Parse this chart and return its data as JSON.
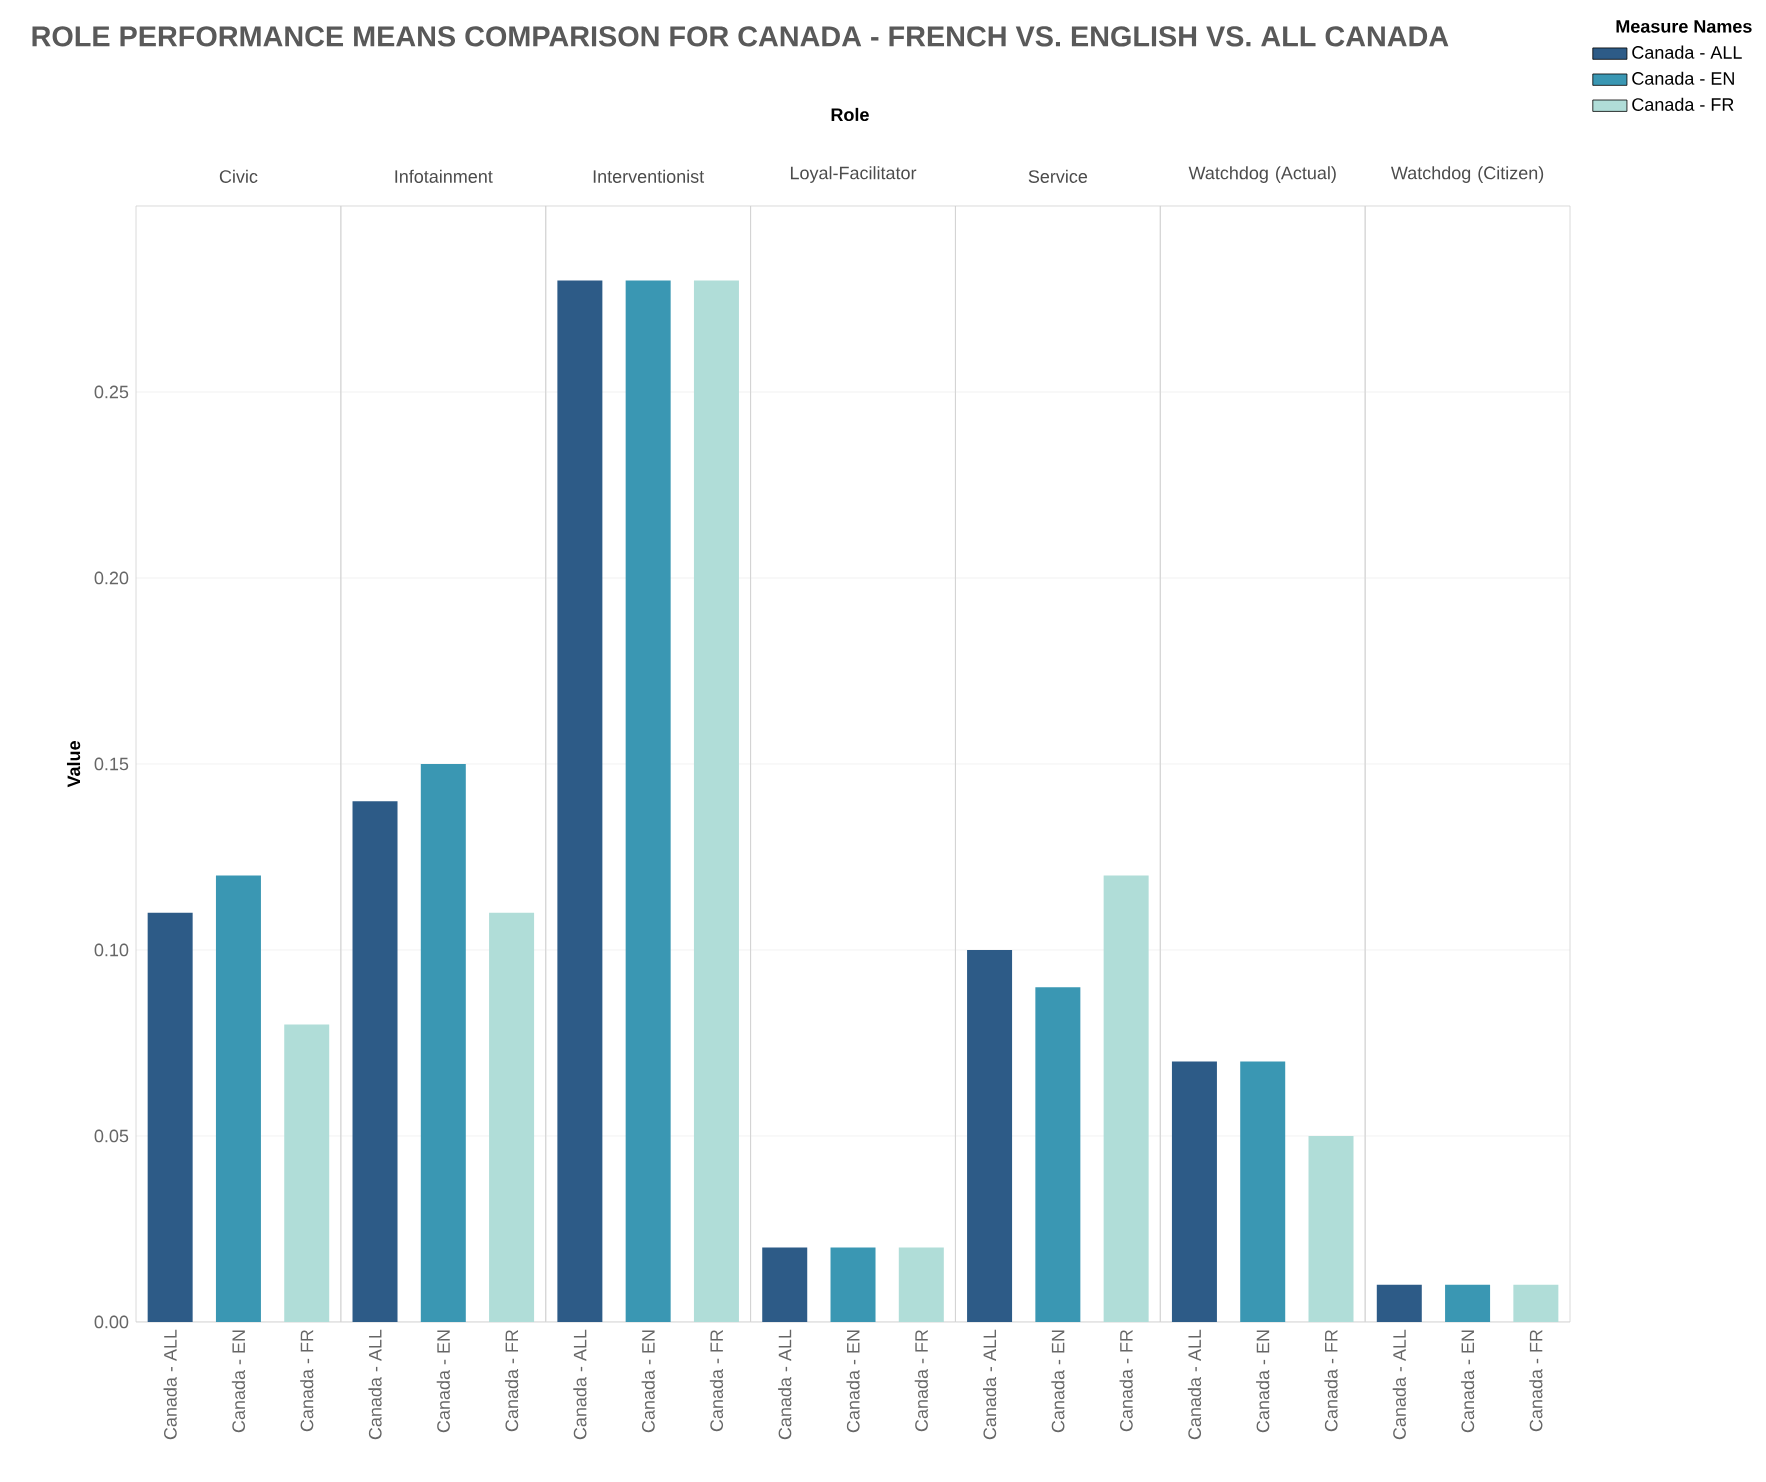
{
  "chart_data": [
    {
      "type": "bar",
      "title": "Civic",
      "ylabel": "Value",
      "legend": "top right",
      "legend_title": "Measure Names",
      "grid": "y",
      "annotations": [
        "ROLE PERFORMANCE MEANS COMPARISON FOR CANADA - FRENCH VS. ENGLISH VS. ALL CANADA",
        "Role"
      ],
      "categories": [
        "Canada - ALL",
        "Canada - EN",
        "Canada - FR"
      ],
      "ylim": [
        0,
        0.3
      ],
      "yticks": [
        {
          "value": 0,
          "label": "0.00"
        },
        {
          "value": 0.05,
          "label": "0.05"
        },
        {
          "value": 0.1,
          "label": "0.10"
        },
        {
          "value": 0.15,
          "label": "0.15"
        },
        {
          "value": 0.2,
          "label": "0.20"
        },
        {
          "value": 0.25,
          "label": "0.25"
        }
      ],
      "series": [
        {
          "name": "Canada - ALL",
          "color": "#2d5b87",
          "values": [
            0.11,
            null,
            null
          ]
        },
        {
          "name": "Canada - EN",
          "color": "#3a97b3",
          "values": [
            null,
            0.12,
            null
          ]
        },
        {
          "name": "Canada - FR",
          "color": "#b0ddd8",
          "values": [
            null,
            null,
            0.08
          ]
        }
      ]
    },
    {
      "type": "bar",
      "title": "Infotainment",
      "grid": "y",
      "tick_labels": "x",
      "categories": [
        "Canada - ALL",
        "Canada - EN",
        "Canada - FR"
      ],
      "ylim": [
        0,
        0.3
      ],
      "series": [
        {
          "color": "#2d5b87",
          "values": [
            0.14,
            null,
            null
          ]
        },
        {
          "color": "#3a97b3",
          "values": [
            null,
            0.15,
            null
          ]
        },
        {
          "color": "#b0ddd8",
          "values": [
            null,
            null,
            0.11
          ]
        }
      ]
    },
    {
      "type": "bar",
      "title": "Interventionist",
      "grid": "y",
      "tick_labels": "x",
      "categories": [
        "Canada - ALL",
        "Canada - EN",
        "Canada - FR"
      ],
      "ylim": [
        0,
        0.3
      ],
      "series": [
        {
          "color": "#2d5b87",
          "values": [
            0.28,
            null,
            null
          ]
        },
        {
          "color": "#3a97b3",
          "values": [
            null,
            0.28,
            null
          ]
        },
        {
          "color": "#b0ddd8",
          "values": [
            null,
            null,
            0.28
          ]
        }
      ]
    },
    {
      "type": "bar",
      "title": "Loyal-Facilitator",
      "grid": "y",
      "tick_labels": "x",
      "categories": [
        "Canada - ALL",
        "Canada - EN",
        "Canada - FR"
      ],
      "ylim": [
        0,
        0.3
      ],
      "series": [
        {
          "color": "#2d5b87",
          "values": [
            0.02,
            null,
            null
          ]
        },
        {
          "color": "#3a97b3",
          "values": [
            null,
            0.02,
            null
          ]
        },
        {
          "color": "#b0ddd8",
          "values": [
            null,
            null,
            0.02
          ]
        }
      ]
    },
    {
      "type": "bar",
      "title": "Service",
      "grid": "y",
      "tick_labels": "x",
      "categories": [
        "Canada - ALL",
        "Canada - EN",
        "Canada - FR"
      ],
      "ylim": [
        0,
        0.3
      ],
      "series": [
        {
          "color": "#2d5b87",
          "values": [
            0.1,
            null,
            null
          ]
        },
        {
          "color": "#3a97b3",
          "values": [
            null,
            0.09,
            null
          ]
        },
        {
          "color": "#b0ddd8",
          "values": [
            null,
            null,
            0.12
          ]
        }
      ]
    },
    {
      "type": "bar",
      "title": "Watchdog (Actual)",
      "grid": "y",
      "tick_labels": "x",
      "categories": [
        "Canada - ALL",
        "Canada - EN",
        "Canada - FR"
      ],
      "ylim": [
        0,
        0.3
      ],
      "series": [
        {
          "color": "#2d5b87",
          "values": [
            0.07,
            null,
            null
          ]
        },
        {
          "color": "#3a97b3",
          "values": [
            null,
            0.07,
            null
          ]
        },
        {
          "color": "#b0ddd8",
          "values": [
            null,
            null,
            0.05
          ]
        }
      ]
    },
    {
      "type": "bar",
      "title": "Watchdog (Citizen)",
      "grid": "y",
      "tick_labels": "x",
      "categories": [
        "Canada - ALL",
        "Canada - EN",
        "Canada - FR"
      ],
      "ylim": [
        0,
        0.3
      ],
      "series": [
        {
          "color": "#2d5b87",
          "values": [
            0.01,
            null,
            null
          ]
        },
        {
          "color": "#3a97b3",
          "values": [
            null,
            0.01,
            null
          ]
        },
        {
          "color": "#b0ddd8",
          "values": [
            null,
            null,
            0.01
          ]
        }
      ]
    }
  ]
}
